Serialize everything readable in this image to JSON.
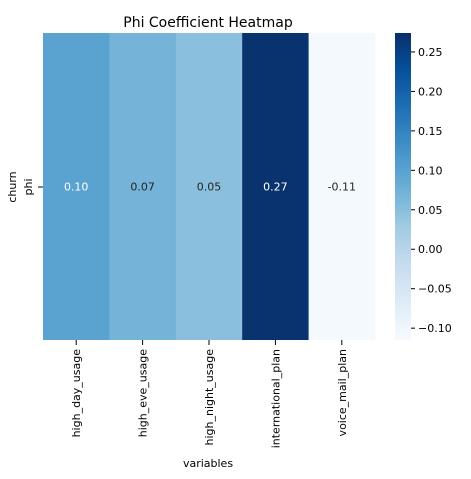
{
  "chart_data": {
    "type": "heatmap",
    "title": "Phi Coefficient Heatmap",
    "xlabel": "variables",
    "ylabel_outer": "churn",
    "row_labels": [
      "phi"
    ],
    "categories": [
      "high_day_usage",
      "high_eve_usage",
      "high_night_usage",
      "international_plan",
      "voice_mail_plan"
    ],
    "values": [
      0.1,
      0.07,
      0.05,
      0.27,
      -0.11
    ],
    "cell_labels": [
      "0.10",
      "0.07",
      "0.05",
      "0.27",
      "-0.11"
    ],
    "colormap": "Blues",
    "color_range": [
      -0.115,
      0.274
    ],
    "colorbar_ticks": [
      -0.1,
      -0.05,
      0.0,
      0.05,
      0.1,
      0.15,
      0.2,
      0.25
    ],
    "colorbar_tick_labels": [
      "−0.10",
      "−0.05",
      "0.00",
      "0.05",
      "0.10",
      "0.15",
      "0.20",
      "0.25"
    ]
  }
}
